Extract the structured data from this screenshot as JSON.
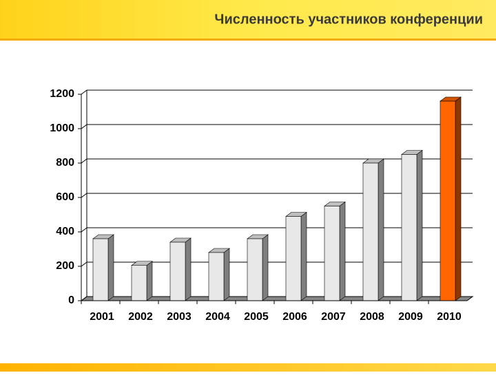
{
  "chart_data": {
    "type": "bar3d",
    "title": "Численность участников конференции",
    "categories": [
      "2001",
      "2002",
      "2003",
      "2004",
      "2005",
      "2006",
      "2007",
      "2008",
      "2009",
      "2010"
    ],
    "values": [
      360,
      205,
      340,
      280,
      360,
      490,
      550,
      800,
      850,
      1160
    ],
    "colors": [
      "#e8e8e8",
      "#e8e8e8",
      "#e8e8e8",
      "#e8e8e8",
      "#e8e8e8",
      "#e8e8e8",
      "#e8e8e8",
      "#e8e8e8",
      "#e8e8e8",
      "#ff6600"
    ],
    "ylim": [
      0,
      1200
    ],
    "yticks": [
      0,
      200,
      400,
      600,
      800,
      1000,
      1200
    ],
    "grid": true
  }
}
